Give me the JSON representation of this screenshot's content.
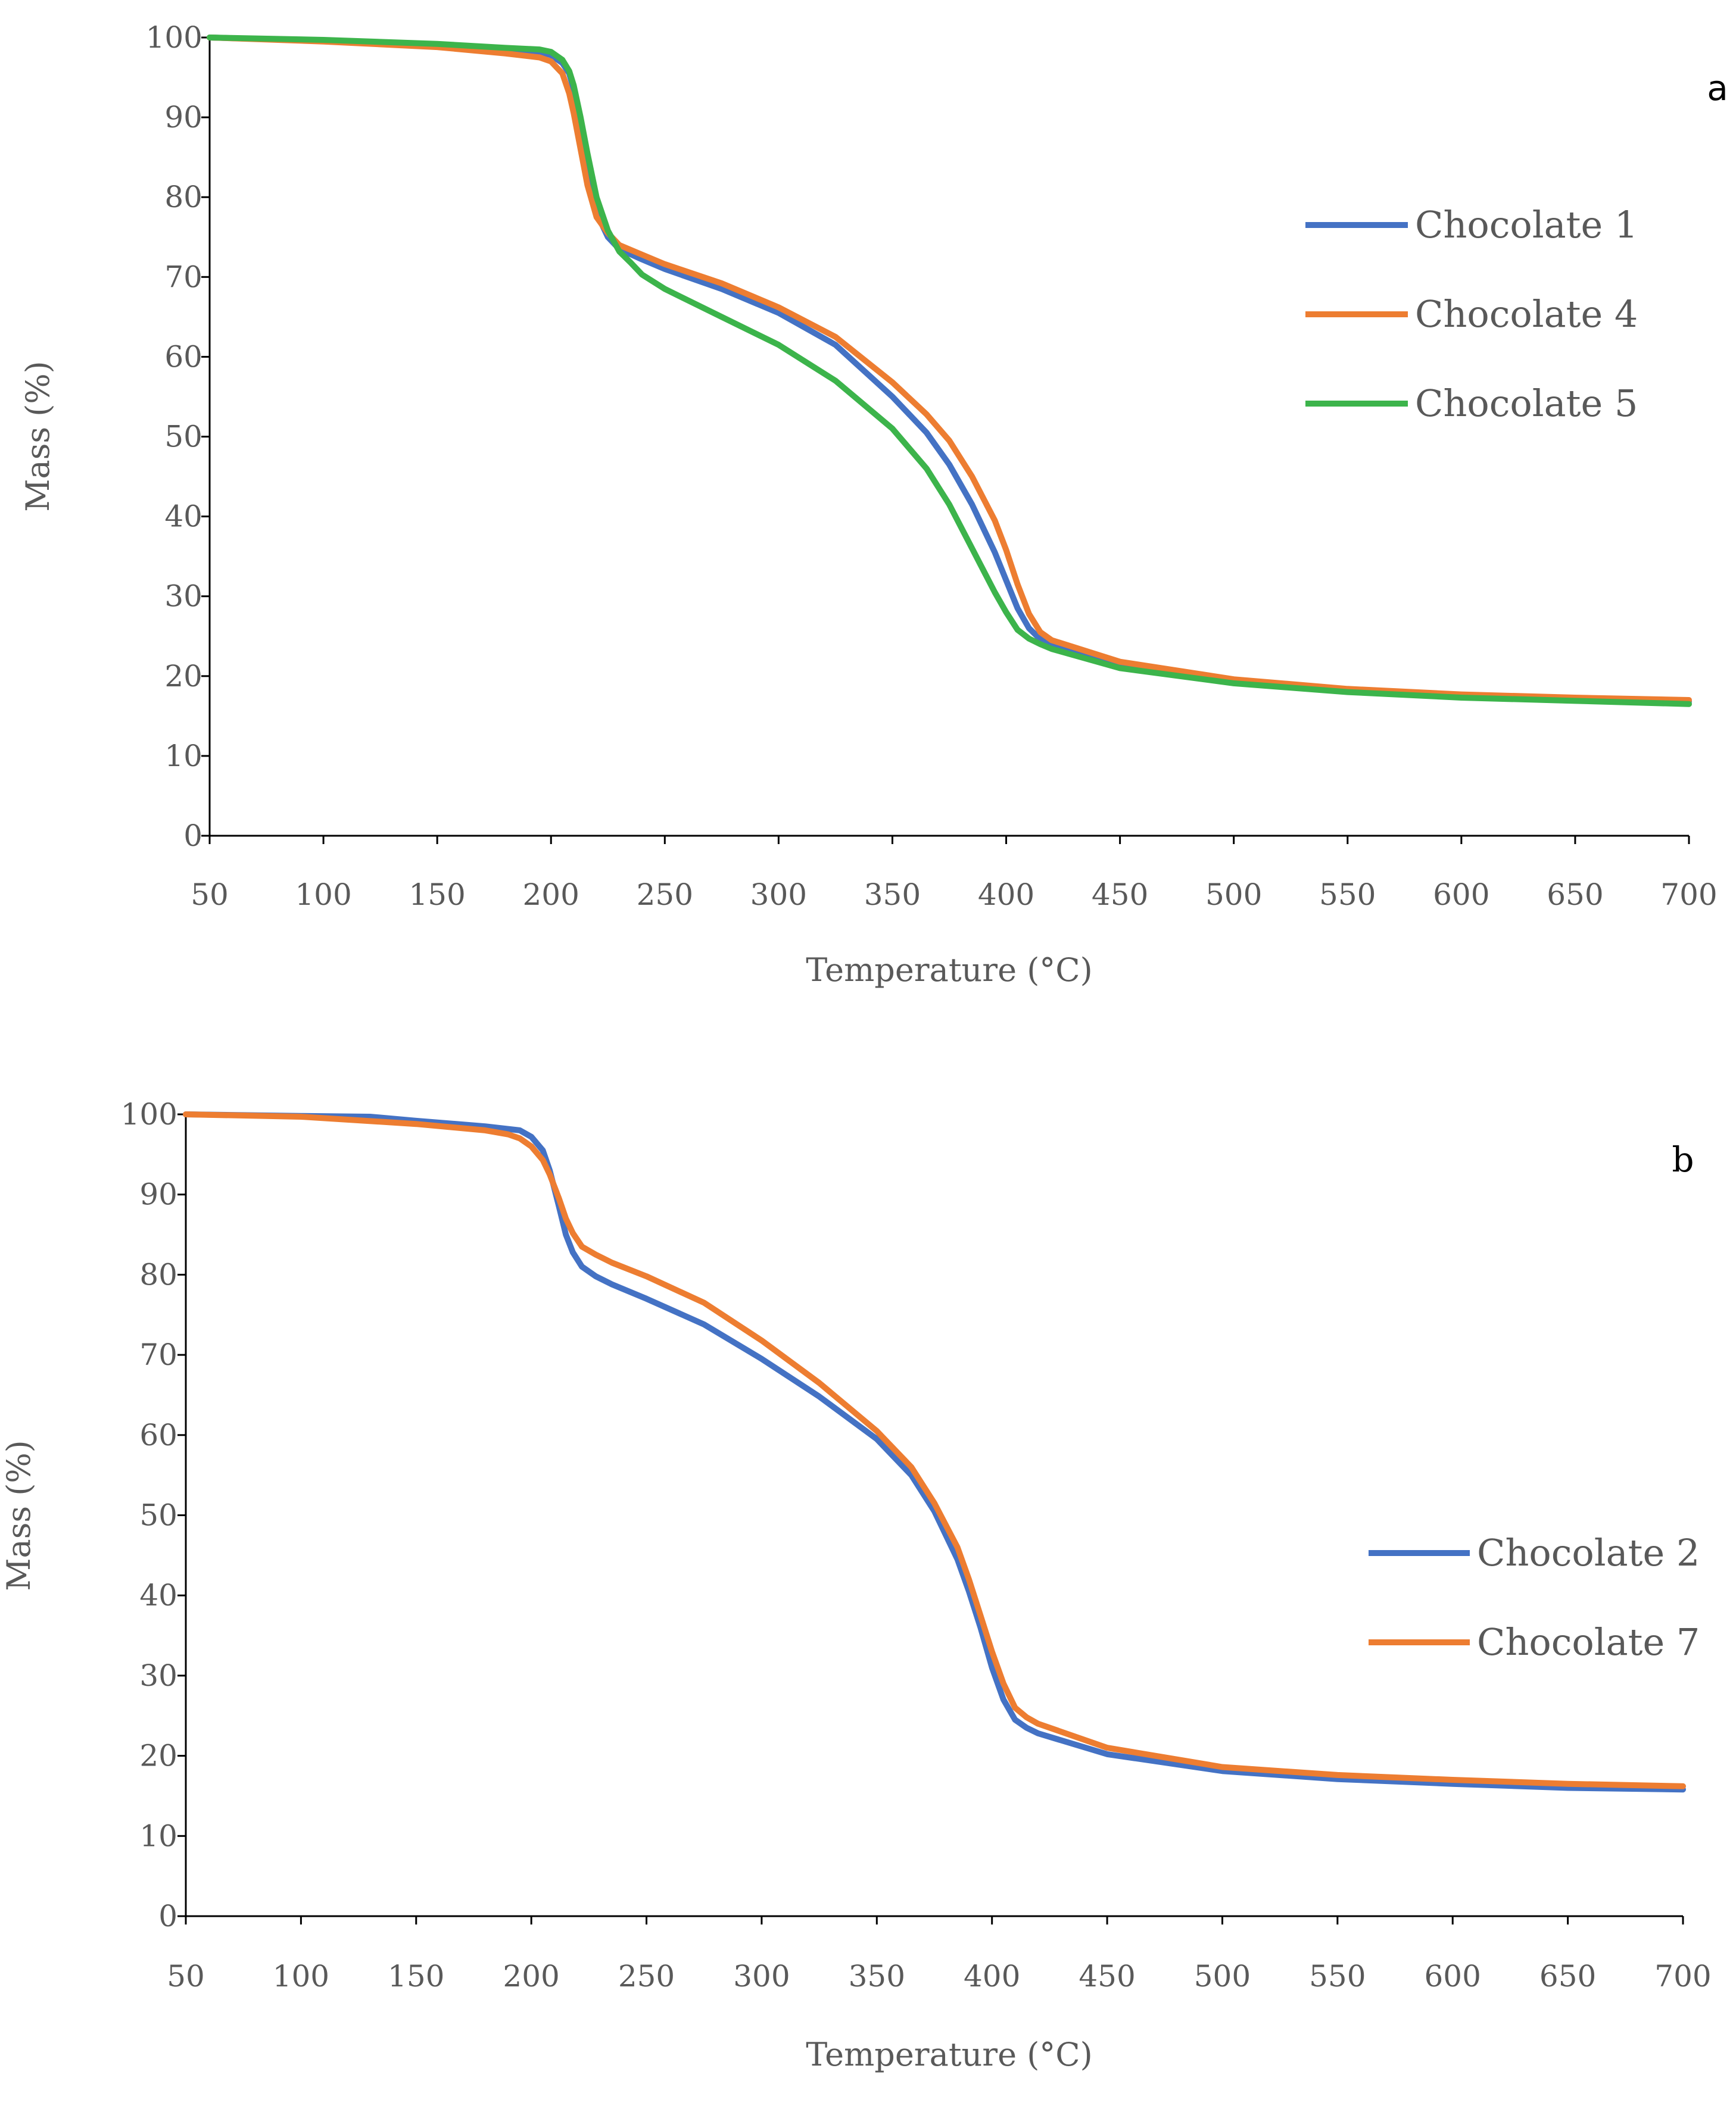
{
  "chart_data": [
    {
      "type": "line",
      "panel_label": "a",
      "xlabel": "Temperature (°C)",
      "ylabel": "Mass (%)",
      "xlim": [
        50,
        700
      ],
      "ylim": [
        0,
        100
      ],
      "xticks": [
        50,
        100,
        150,
        200,
        250,
        300,
        350,
        400,
        450,
        500,
        550,
        600,
        650,
        700
      ],
      "yticks": [
        0,
        10,
        20,
        30,
        40,
        50,
        60,
        70,
        80,
        90,
        100
      ],
      "grid": false,
      "legend_position": "right",
      "series": [
        {
          "name": "Chocolate 1",
          "color": "#4472C4",
          "x": [
            50,
            100,
            150,
            180,
            195,
            200,
            205,
            208,
            210,
            213,
            216,
            220,
            225,
            230,
            240,
            250,
            275,
            300,
            325,
            350,
            365,
            375,
            385,
            395,
            400,
            405,
            410,
            415,
            420,
            450,
            500,
            550,
            600,
            650,
            700
          ],
          "y": [
            100,
            99.6,
            99,
            98.4,
            98.2,
            97.8,
            96.8,
            95.5,
            93.5,
            89,
            84,
            78,
            75,
            73.5,
            72.2,
            71,
            68.5,
            65.5,
            61.5,
            55,
            50.5,
            46.5,
            41.5,
            35.5,
            32,
            28.5,
            26,
            24.6,
            24,
            21.3,
            19.3,
            18.2,
            17.5,
            17.1,
            16.8
          ]
        },
        {
          "name": "Chocolate 4",
          "color": "#ED7D31",
          "x": [
            50,
            100,
            150,
            180,
            195,
            200,
            205,
            208,
            210,
            213,
            216,
            220,
            225,
            230,
            240,
            250,
            275,
            300,
            325,
            350,
            365,
            375,
            385,
            395,
            400,
            405,
            410,
            415,
            420,
            450,
            500,
            550,
            600,
            650,
            700
          ],
          "y": [
            100,
            99.5,
            98.8,
            98,
            97.5,
            97,
            95.5,
            93,
            90.5,
            86,
            81.5,
            77.5,
            75.5,
            74,
            72.8,
            71.6,
            69.2,
            66.2,
            62.5,
            56.8,
            52.8,
            49.5,
            45,
            39.5,
            35.8,
            31.5,
            27.8,
            25.5,
            24.5,
            21.8,
            19.6,
            18.4,
            17.7,
            17.3,
            17
          ]
        },
        {
          "name": "Chocolate 5",
          "color": "#3CB44B",
          "x": [
            50,
            100,
            150,
            180,
            195,
            200,
            205,
            208,
            210,
            213,
            216,
            220,
            225,
            230,
            235,
            240,
            250,
            275,
            300,
            325,
            350,
            365,
            375,
            385,
            395,
            400,
            405,
            410,
            415,
            420,
            450,
            500,
            550,
            600,
            650,
            700
          ],
          "y": [
            100,
            99.7,
            99.2,
            98.7,
            98.5,
            98.2,
            97.2,
            95.8,
            94,
            90,
            85.5,
            80,
            75.8,
            73.2,
            71.8,
            70.3,
            68.5,
            65,
            61.5,
            57,
            51,
            46,
            41.5,
            36,
            30.5,
            28,
            25.8,
            24.7,
            24,
            23.4,
            21,
            19.1,
            18,
            17.3,
            16.9,
            16.5
          ]
        }
      ]
    },
    {
      "type": "line",
      "panel_label": "b",
      "xlabel": "Temperature (°C)",
      "ylabel": "Mass (%)",
      "xlim": [
        50,
        700
      ],
      "ylim": [
        0,
        100
      ],
      "xticks": [
        50,
        100,
        150,
        200,
        250,
        300,
        350,
        400,
        450,
        500,
        550,
        600,
        650,
        700
      ],
      "yticks": [
        0,
        10,
        20,
        30,
        40,
        50,
        60,
        70,
        80,
        90,
        100
      ],
      "grid": false,
      "legend_position": "right",
      "series": [
        {
          "name": "Chocolate 2",
          "color": "#4472C4",
          "x": [
            50,
            100,
            130,
            150,
            180,
            195,
            200,
            205,
            208,
            212,
            215,
            218,
            222,
            228,
            235,
            250,
            275,
            300,
            325,
            350,
            365,
            375,
            385,
            390,
            395,
            400,
            405,
            410,
            415,
            420,
            450,
            500,
            550,
            600,
            650,
            700
          ],
          "y": [
            100,
            99.8,
            99.7,
            99.2,
            98.5,
            98,
            97.2,
            95.5,
            93,
            88.5,
            85,
            82.8,
            81,
            79.8,
            78.8,
            77,
            73.8,
            69.5,
            64.8,
            59.5,
            55,
            50.5,
            44.5,
            40.5,
            36,
            31,
            27,
            24.5,
            23.5,
            22.8,
            20.2,
            18.1,
            17.1,
            16.5,
            16,
            15.8
          ]
        },
        {
          "name": "Chocolate 7",
          "color": "#ED7D31",
          "x": [
            50,
            100,
            150,
            180,
            190,
            195,
            200,
            205,
            208,
            212,
            215,
            218,
            222,
            228,
            235,
            250,
            275,
            300,
            325,
            350,
            365,
            375,
            385,
            390,
            395,
            400,
            405,
            410,
            415,
            420,
            450,
            500,
            550,
            600,
            650,
            700
          ],
          "y": [
            100,
            99.7,
            98.8,
            98,
            97.5,
            97,
            96,
            94.3,
            92.5,
            89.5,
            87,
            85.2,
            83.5,
            82.5,
            81.5,
            79.8,
            76.5,
            71.8,
            66.5,
            60.5,
            56,
            51.5,
            46,
            42,
            37.5,
            33,
            29,
            26,
            24.8,
            24,
            21,
            18.6,
            17.6,
            17,
            16.5,
            16.2
          ]
        }
      ]
    }
  ]
}
